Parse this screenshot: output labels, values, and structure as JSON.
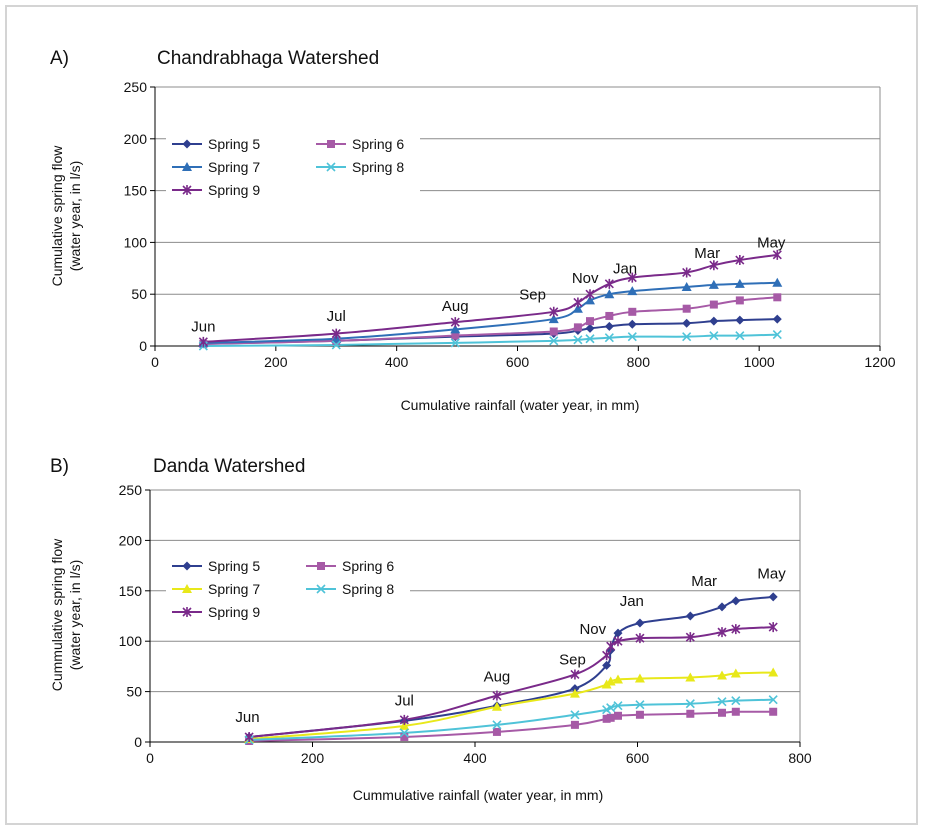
{
  "chart_data": [
    {
      "type": "line",
      "panel_label": "A)",
      "title": "Chandrabhaga Watershed",
      "xlabel": "Cumulative rainfall (water year, in mm)",
      "ylabel": [
        "Cumulative spring flow",
        "(water year, in l/s)"
      ],
      "xlim": [
        0,
        1200
      ],
      "ylim": [
        0,
        250
      ],
      "xticks": [
        0,
        200,
        400,
        600,
        800,
        1000,
        1200
      ],
      "yticks": [
        0,
        50,
        100,
        150,
        200,
        250
      ],
      "grid": "horizontal",
      "legend_position": "top-left",
      "month_labels": [
        {
          "text": "Jun",
          "x": 80,
          "y": 12
        },
        {
          "text": "Jul",
          "x": 300,
          "y": 22
        },
        {
          "text": "Aug",
          "x": 497,
          "y": 32
        },
        {
          "text": "Sep",
          "x": 625,
          "y": 43
        },
        {
          "text": "Nov",
          "x": 712,
          "y": 59
        },
        {
          "text": "Jan",
          "x": 778,
          "y": 68
        },
        {
          "text": "Mar",
          "x": 914,
          "y": 83
        },
        {
          "text": "May",
          "x": 1020,
          "y": 93
        }
      ],
      "series": [
        {
          "name": "Spring 5",
          "color": "#2f3f8f",
          "marker": "diamond",
          "x": [
            80,
            300,
            497,
            660,
            700,
            720,
            752,
            790,
            880,
            925,
            968,
            1030
          ],
          "y": [
            2,
            5,
            9,
            12,
            15,
            17,
            19,
            21,
            22,
            24,
            25,
            26
          ]
        },
        {
          "name": "Spring 6",
          "color": "#a65aa6",
          "marker": "square",
          "x": [
            80,
            300,
            497,
            660,
            700,
            720,
            752,
            790,
            880,
            925,
            968,
            1030
          ],
          "y": [
            2,
            5,
            10,
            14,
            18,
            24,
            29,
            33,
            36,
            40,
            44,
            47
          ]
        },
        {
          "name": "Spring 7",
          "color": "#2f6fb7",
          "marker": "triangle",
          "x": [
            80,
            300,
            497,
            660,
            700,
            720,
            752,
            790,
            880,
            925,
            968,
            1030
          ],
          "y": [
            3,
            7,
            16,
            26,
            36,
            44,
            50,
            53,
            57,
            59,
            60,
            61
          ]
        },
        {
          "name": "Spring 8",
          "color": "#4fc3d8",
          "marker": "x",
          "x": [
            80,
            300,
            497,
            660,
            700,
            720,
            752,
            790,
            880,
            925,
            968,
            1030
          ],
          "y": [
            0,
            1,
            3,
            5,
            6,
            7,
            8,
            9,
            9,
            10,
            10,
            11
          ]
        },
        {
          "name": "Spring 9",
          "color": "#7a2a8a",
          "marker": "star",
          "x": [
            80,
            300,
            497,
            660,
            700,
            720,
            752,
            790,
            880,
            925,
            968,
            1030
          ],
          "y": [
            4,
            12,
            23,
            33,
            42,
            50,
            60,
            66,
            71,
            78,
            83,
            88
          ]
        }
      ]
    },
    {
      "type": "line",
      "panel_label": "B)",
      "title": "Danda Watershed",
      "xlabel": "Cummulative rainfall (water year, in mm)",
      "ylabel": [
        "Cummulative spring flow",
        "(water year, in l/s)"
      ],
      "xlim": [
        0,
        800
      ],
      "ylim": [
        0,
        250
      ],
      "xticks": [
        0,
        200,
        400,
        600,
        800
      ],
      "yticks": [
        0,
        50,
        100,
        150,
        200,
        250
      ],
      "grid": "horizontal",
      "legend_position": "top-left",
      "month_labels": [
        {
          "text": "Jun",
          "x": 120,
          "y": 18
        },
        {
          "text": "Jul",
          "x": 313,
          "y": 34
        },
        {
          "text": "Aug",
          "x": 427,
          "y": 58
        },
        {
          "text": "Sep",
          "x": 520,
          "y": 75
        },
        {
          "text": "Nov",
          "x": 545,
          "y": 105
        },
        {
          "text": "Jan",
          "x": 593,
          "y": 133
        },
        {
          "text": "Mar",
          "x": 682,
          "y": 153
        },
        {
          "text": "May",
          "x": 765,
          "y": 160
        }
      ],
      "series": [
        {
          "name": "Spring 5",
          "color": "#2f3f8f",
          "marker": "diamond",
          "x": [
            122,
            313,
            427,
            523,
            562,
            567,
            576,
            603,
            665,
            704,
            721,
            767
          ],
          "y": [
            5,
            21,
            36,
            53,
            76,
            91,
            108,
            118,
            125,
            134,
            140,
            144
          ]
        },
        {
          "name": "Spring 6",
          "color": "#a65aa6",
          "marker": "square",
          "x": [
            122,
            313,
            427,
            523,
            562,
            567,
            576,
            603,
            665,
            704,
            721,
            767
          ],
          "y": [
            1,
            5,
            10,
            17,
            23,
            24,
            26,
            27,
            28,
            29,
            30,
            30
          ]
        },
        {
          "name": "Spring 7",
          "color": "#e8e81a",
          "marker": "triangle",
          "x": [
            122,
            313,
            427,
            523,
            562,
            567,
            576,
            603,
            665,
            704,
            721,
            767
          ],
          "y": [
            3,
            16,
            35,
            48,
            57,
            60,
            62,
            63,
            64,
            66,
            68,
            69
          ]
        },
        {
          "name": "Spring 8",
          "color": "#4fc3d8",
          "marker": "x",
          "x": [
            122,
            313,
            427,
            523,
            562,
            567,
            576,
            603,
            665,
            704,
            721,
            767
          ],
          "y": [
            2,
            9,
            17,
            27,
            32,
            34,
            36,
            37,
            38,
            40,
            41,
            42
          ]
        },
        {
          "name": "Spring 9",
          "color": "#7a2a8a",
          "marker": "star",
          "x": [
            122,
            313,
            427,
            523,
            562,
            567,
            576,
            603,
            665,
            704,
            721,
            767
          ],
          "y": [
            5,
            22,
            46,
            67,
            86,
            95,
            100,
            103,
            104,
            109,
            112,
            114
          ]
        }
      ]
    }
  ]
}
